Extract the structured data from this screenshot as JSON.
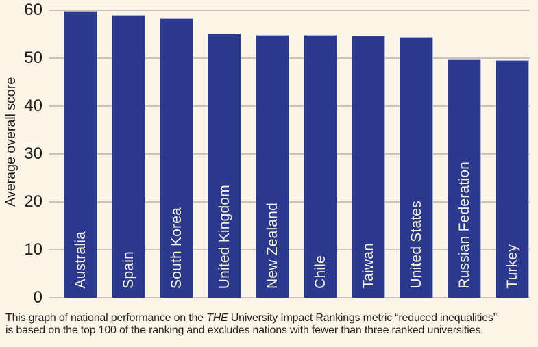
{
  "colors": {
    "background": "#faf5e7",
    "bar": "#2b3a8c",
    "bar_edge": "#a9b2d4",
    "bar_label_text": "#f6f2e3",
    "gridline": "#c8c4ba",
    "text": "#231f20"
  },
  "chart_data": {
    "type": "bar",
    "categories": [
      "Australia",
      "Spain",
      "South Korea",
      "United Kingdom",
      "New Zealand",
      "Chile",
      "Taiwan",
      "United States",
      "Russian Federation",
      "Turkey"
    ],
    "values": [
      59.8,
      59.0,
      58.3,
      55.2,
      54.9,
      54.8,
      54.7,
      54.4,
      49.8,
      49.6
    ],
    "title": "",
    "xlabel": "",
    "ylabel": "Average overall score",
    "ylim": [
      0,
      60
    ],
    "yticks": [
      0,
      10,
      20,
      30,
      40,
      50,
      60
    ],
    "grid": "horizontal",
    "legend": "none",
    "bar_label_style": "country name rotated 90deg inside bar near bottom, cream text"
  },
  "caption": {
    "line1_pre": "This graph of national performance on the ",
    "line1_italic": "THE",
    "line1_post": " University Impact Rankings metric “reduced inequalities”",
    "line2": "is based on the top 100 of the ranking and excludes nations with fewer than three ranked universities."
  }
}
